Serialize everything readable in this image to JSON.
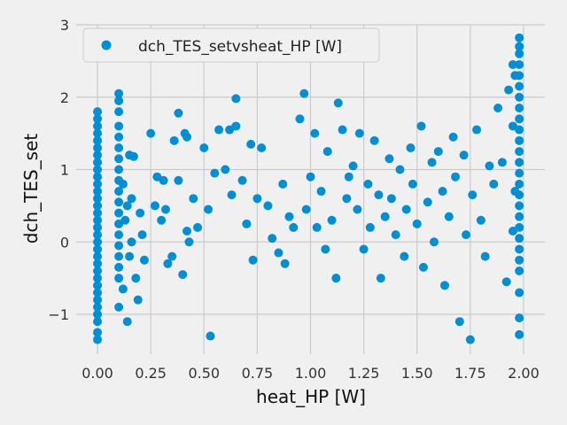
{
  "chart_data": {
    "type": "scatter",
    "title": "",
    "xlabel": "heat_HP [W]",
    "ylabel": "dch_TES_set",
    "xlim": [
      -0.1,
      2.1
    ],
    "ylim": [
      -1.55,
      3.0
    ],
    "xticks": [
      0.0,
      0.25,
      0.5,
      0.75,
      1.0,
      1.25,
      1.5,
      1.75,
      2.0
    ],
    "xtick_labels": [
      "0.00",
      "0.25",
      "0.50",
      "0.75",
      "1.00",
      "1.25",
      "1.50",
      "1.75",
      "2.00"
    ],
    "yticks": [
      -1,
      0,
      1,
      2,
      3
    ],
    "ytick_labels": [
      "−1",
      "0",
      "1",
      "2",
      "3"
    ],
    "grid": true,
    "legend_position": "top-left",
    "series": [
      {
        "name": "dch_TES_setvsheat_HP [W]",
        "color": "#008fd5",
        "points": [
          [
            0.0,
            1.8
          ],
          [
            0.0,
            1.7
          ],
          [
            0.0,
            1.6
          ],
          [
            0.0,
            1.5
          ],
          [
            0.0,
            1.4
          ],
          [
            0.0,
            1.3
          ],
          [
            0.0,
            1.2
          ],
          [
            0.0,
            1.1
          ],
          [
            0.0,
            1.0
          ],
          [
            0.0,
            0.9
          ],
          [
            0.0,
            0.8
          ],
          [
            0.0,
            0.7
          ],
          [
            0.0,
            0.6
          ],
          [
            0.0,
            0.5
          ],
          [
            0.0,
            0.4
          ],
          [
            0.0,
            0.3
          ],
          [
            0.0,
            0.2
          ],
          [
            0.0,
            0.1
          ],
          [
            0.0,
            0.0
          ],
          [
            0.0,
            -0.1
          ],
          [
            0.0,
            -0.2
          ],
          [
            0.0,
            -0.3
          ],
          [
            0.0,
            -0.4
          ],
          [
            0.0,
            -0.5
          ],
          [
            0.0,
            -0.6
          ],
          [
            0.0,
            -0.7
          ],
          [
            0.0,
            -0.8
          ],
          [
            0.0,
            -0.9
          ],
          [
            0.0,
            -1.0
          ],
          [
            0.0,
            -1.1
          ],
          [
            0.0,
            -1.25
          ],
          [
            0.0,
            -1.35
          ],
          [
            0.1,
            2.05
          ],
          [
            0.1,
            1.95
          ],
          [
            0.1,
            1.8
          ],
          [
            0.1,
            1.6
          ],
          [
            0.1,
            1.45
          ],
          [
            0.1,
            1.3
          ],
          [
            0.1,
            1.15
          ],
          [
            0.1,
            1.0
          ],
          [
            0.1,
            0.85
          ],
          [
            0.1,
            0.7
          ],
          [
            0.1,
            0.55
          ],
          [
            0.1,
            0.4
          ],
          [
            0.1,
            0.25
          ],
          [
            0.1,
            0.1
          ],
          [
            0.1,
            -0.05
          ],
          [
            0.1,
            -0.2
          ],
          [
            0.1,
            -0.35
          ],
          [
            0.1,
            -0.5
          ],
          [
            0.1,
            -0.9
          ],
          [
            0.12,
            0.8
          ],
          [
            0.13,
            0.3
          ],
          [
            0.12,
            -0.65
          ],
          [
            0.14,
            0.5
          ],
          [
            0.15,
            -0.2
          ],
          [
            0.15,
            1.2
          ],
          [
            0.16,
            0.6
          ],
          [
            0.17,
            1.18
          ],
          [
            0.18,
            -0.5
          ],
          [
            0.2,
            0.4
          ],
          [
            0.22,
            -0.25
          ],
          [
            0.14,
            -1.1
          ],
          [
            0.19,
            -0.8
          ],
          [
            0.16,
            0.0
          ],
          [
            0.21,
            0.1
          ],
          [
            0.25,
            1.5
          ],
          [
            0.27,
            0.5
          ],
          [
            0.28,
            0.9
          ],
          [
            0.3,
            0.3
          ],
          [
            0.31,
            0.85
          ],
          [
            0.32,
            0.45
          ],
          [
            0.33,
            -0.3
          ],
          [
            0.35,
            -0.2
          ],
          [
            0.36,
            1.4
          ],
          [
            0.38,
            1.78
          ],
          [
            0.38,
            0.85
          ],
          [
            0.4,
            -0.45
          ],
          [
            0.41,
            1.5
          ],
          [
            0.42,
            1.45
          ],
          [
            0.42,
            0.15
          ],
          [
            0.43,
            0.0
          ],
          [
            0.45,
            0.6
          ],
          [
            0.47,
            0.2
          ],
          [
            0.5,
            1.3
          ],
          [
            0.52,
            0.45
          ],
          [
            0.53,
            -1.3
          ],
          [
            0.55,
            0.95
          ],
          [
            0.57,
            1.55
          ],
          [
            0.6,
            1.0
          ],
          [
            0.62,
            1.55
          ],
          [
            0.63,
            0.65
          ],
          [
            0.65,
            1.98
          ],
          [
            0.65,
            1.6
          ],
          [
            0.68,
            0.85
          ],
          [
            0.7,
            0.25
          ],
          [
            0.72,
            1.35
          ],
          [
            0.73,
            -0.25
          ],
          [
            0.75,
            0.6
          ],
          [
            0.77,
            1.3
          ],
          [
            0.8,
            0.5
          ],
          [
            0.82,
            0.05
          ],
          [
            0.85,
            -0.15
          ],
          [
            0.87,
            0.8
          ],
          [
            0.88,
            -0.3
          ],
          [
            0.9,
            0.35
          ],
          [
            0.92,
            0.2
          ],
          [
            0.95,
            1.7
          ],
          [
            0.97,
            2.05
          ],
          [
            0.98,
            0.45
          ],
          [
            1.0,
            0.9
          ],
          [
            1.02,
            1.5
          ],
          [
            1.03,
            0.2
          ],
          [
            1.05,
            0.7
          ],
          [
            1.07,
            -0.1
          ],
          [
            1.08,
            1.25
          ],
          [
            1.1,
            0.3
          ],
          [
            1.12,
            -0.5
          ],
          [
            1.13,
            1.92
          ],
          [
            1.15,
            1.55
          ],
          [
            1.17,
            0.6
          ],
          [
            1.18,
            0.9
          ],
          [
            1.2,
            1.05
          ],
          [
            1.22,
            0.45
          ],
          [
            1.23,
            1.5
          ],
          [
            1.25,
            -0.1
          ],
          [
            1.27,
            0.8
          ],
          [
            1.28,
            0.2
          ],
          [
            1.3,
            1.4
          ],
          [
            1.32,
            0.65
          ],
          [
            1.33,
            -0.5
          ],
          [
            1.35,
            0.35
          ],
          [
            1.37,
            1.15
          ],
          [
            1.38,
            0.6
          ],
          [
            1.4,
            0.1
          ],
          [
            1.42,
            1.0
          ],
          [
            1.44,
            -0.2
          ],
          [
            1.45,
            0.45
          ],
          [
            1.47,
            1.3
          ],
          [
            1.48,
            0.8
          ],
          [
            1.5,
            0.25
          ],
          [
            1.52,
            1.6
          ],
          [
            1.53,
            -0.35
          ],
          [
            1.55,
            0.55
          ],
          [
            1.57,
            1.1
          ],
          [
            1.58,
            0.0
          ],
          [
            1.6,
            1.25
          ],
          [
            1.62,
            0.7
          ],
          [
            1.63,
            -0.6
          ],
          [
            1.65,
            0.35
          ],
          [
            1.67,
            1.45
          ],
          [
            1.68,
            0.9
          ],
          [
            1.7,
            -1.1
          ],
          [
            1.72,
            1.2
          ],
          [
            1.73,
            0.1
          ],
          [
            1.75,
            -1.35
          ],
          [
            1.76,
            0.65
          ],
          [
            1.78,
            1.55
          ],
          [
            1.8,
            0.3
          ],
          [
            1.82,
            -0.2
          ],
          [
            1.84,
            1.05
          ],
          [
            1.86,
            0.8
          ],
          [
            1.88,
            1.85
          ],
          [
            1.9,
            1.1
          ],
          [
            1.92,
            -0.55
          ],
          [
            1.93,
            2.1
          ],
          [
            1.95,
            2.45
          ],
          [
            1.95,
            1.6
          ],
          [
            1.95,
            0.15
          ],
          [
            1.96,
            2.3
          ],
          [
            1.96,
            0.7
          ],
          [
            1.98,
            2.82
          ],
          [
            1.98,
            2.7
          ],
          [
            1.98,
            2.6
          ],
          [
            1.98,
            2.45
          ],
          [
            1.98,
            2.3
          ],
          [
            1.98,
            2.15
          ],
          [
            1.98,
            2.0
          ],
          [
            1.98,
            1.85
          ],
          [
            1.98,
            1.7
          ],
          [
            1.98,
            1.55
          ],
          [
            1.98,
            1.4
          ],
          [
            1.98,
            1.25
          ],
          [
            1.98,
            1.1
          ],
          [
            1.98,
            0.95
          ],
          [
            1.98,
            0.8
          ],
          [
            1.98,
            0.65
          ],
          [
            1.98,
            0.5
          ],
          [
            1.98,
            0.35
          ],
          [
            1.98,
            0.2
          ],
          [
            1.98,
            0.05
          ],
          [
            1.98,
            -0.1
          ],
          [
            1.98,
            -0.25
          ],
          [
            1.98,
            -0.4
          ],
          [
            1.98,
            -0.7
          ],
          [
            1.98,
            -1.05
          ],
          [
            1.98,
            -1.28
          ]
        ]
      }
    ]
  }
}
